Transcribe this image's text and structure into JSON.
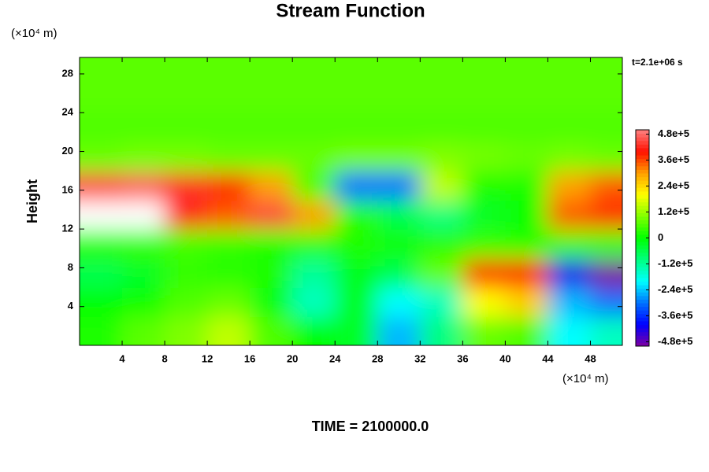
{
  "chart_data": {
    "type": "contour",
    "title": "Stream Function",
    "y_label": "Height",
    "x_unit": "(×10⁴ m)",
    "y_unit": "(×10⁴ m)",
    "time_note": "t=2.1e+06 s",
    "footer": "TIME = 2100000.0",
    "x": [
      2,
      6,
      10,
      14,
      18,
      22,
      26,
      30,
      34,
      38,
      42,
      46,
      50
    ],
    "y": [
      1.5,
      4.5,
      7.5,
      10.5,
      13.5,
      16.5,
      19.5,
      22.5,
      25.5,
      28.5
    ],
    "z": [
      [
        20000,
        70000,
        100000,
        150000,
        60000,
        0,
        -30000,
        -250000,
        -100000,
        80000,
        60000,
        -200000,
        -150000
      ],
      [
        0,
        10000,
        60000,
        80000,
        -10000,
        -150000,
        -20000,
        -200000,
        -150000,
        200000,
        250000,
        -250000,
        -300000
      ],
      [
        -60000,
        -30000,
        40000,
        30000,
        20000,
        -120000,
        -20000,
        -60000,
        80000,
        380000,
        400000,
        -420000,
        -520000
      ],
      [
        30000,
        40000,
        50000,
        40000,
        20000,
        30000,
        20000,
        10000,
        30000,
        40000,
        30000,
        50000,
        40000
      ],
      [
        520000,
        520000,
        420000,
        350000,
        450000,
        300000,
        30000,
        -60000,
        -100000,
        -30000,
        0,
        350000,
        380000
      ],
      [
        450000,
        470000,
        430000,
        380000,
        300000,
        60000,
        -300000,
        -300000,
        150000,
        20000,
        20000,
        300000,
        350000
      ],
      [
        80000,
        90000,
        90000,
        80000,
        80000,
        80000,
        90000,
        90000,
        100000,
        90000,
        80000,
        90000,
        80000
      ],
      [
        60000,
        60000,
        60000,
        60000,
        60000,
        60000,
        60000,
        60000,
        60000,
        60000,
        60000,
        60000,
        60000
      ],
      [
        70000,
        70000,
        70000,
        70000,
        70000,
        70000,
        70000,
        70000,
        70000,
        70000,
        70000,
        70000,
        70000
      ],
      [
        70000,
        70000,
        70000,
        70000,
        70000,
        70000,
        70000,
        70000,
        70000,
        70000,
        70000,
        70000,
        70000
      ]
    ],
    "xlim": [
      0,
      51
    ],
    "ylim": [
      0,
      29.7
    ],
    "xticks": [
      4,
      8,
      12,
      16,
      20,
      24,
      28,
      32,
      36,
      40,
      44,
      48
    ],
    "yticks": [
      4,
      8,
      12,
      16,
      20,
      24,
      28
    ],
    "clim": [
      -500000,
      500000
    ],
    "colors": [
      "#8000a0",
      "#0000ff",
      "#0070ff",
      "#00ffff",
      "#00ff80",
      "#00ff00",
      "#80ff00",
      "#ffff00",
      "#ffa000",
      "#ff1000",
      "#ff8080"
    ],
    "over_color": "#ffffff",
    "cticks": [
      {
        "value": 480000,
        "label": "4.8e+5"
      },
      {
        "value": 360000,
        "label": "3.6e+5"
      },
      {
        "value": 240000,
        "label": "2.4e+5"
      },
      {
        "value": 120000,
        "label": "1.2e+5"
      },
      0,
      {
        "value": -120000,
        "label": "-1.2e+5"
      },
      {
        "value": -240000,
        "label": "-2.4e+5"
      },
      {
        "value": -360000,
        "label": "-3.6e+5"
      },
      {
        "value": -480000,
        "label": "-4.8e+5"
      }
    ]
  }
}
